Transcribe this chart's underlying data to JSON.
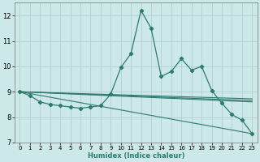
{
  "xlabel": "Humidex (Indice chaleur)",
  "xlim": [
    -0.5,
    23.5
  ],
  "ylim": [
    7,
    12.5
  ],
  "yticks": [
    7,
    8,
    9,
    10,
    11,
    12
  ],
  "xticks": [
    0,
    1,
    2,
    3,
    4,
    5,
    6,
    7,
    8,
    9,
    10,
    11,
    12,
    13,
    14,
    15,
    16,
    17,
    18,
    19,
    20,
    21,
    22,
    23
  ],
  "background_color": "#cce8e8",
  "grid_color": "#b0d0d0",
  "line_color": "#2d7a6e",
  "figsize": [
    3.2,
    2.0
  ],
  "dpi": 100,
  "series_main": {
    "x": [
      0,
      1,
      2,
      3,
      4,
      5,
      6,
      7,
      8,
      9,
      10,
      11,
      12,
      13,
      14,
      15,
      16,
      17,
      18,
      19,
      20,
      21,
      22,
      23
    ],
    "y": [
      9.0,
      8.85,
      8.6,
      8.5,
      8.45,
      8.4,
      8.35,
      8.4,
      8.45,
      8.9,
      9.95,
      10.5,
      12.2,
      11.5,
      9.6,
      9.8,
      10.3,
      9.85,
      10.0,
      9.05,
      8.55,
      8.1,
      7.88,
      7.35
    ]
  },
  "series_straight": [
    {
      "x": [
        0,
        23
      ],
      "y": [
        9.0,
        8.6
      ]
    },
    {
      "x": [
        0,
        23
      ],
      "y": [
        9.0,
        8.65
      ]
    },
    {
      "x": [
        0,
        23
      ],
      "y": [
        9.0,
        8.72
      ]
    },
    {
      "x": [
        0,
        23
      ],
      "y": [
        9.0,
        7.35
      ]
    }
  ]
}
